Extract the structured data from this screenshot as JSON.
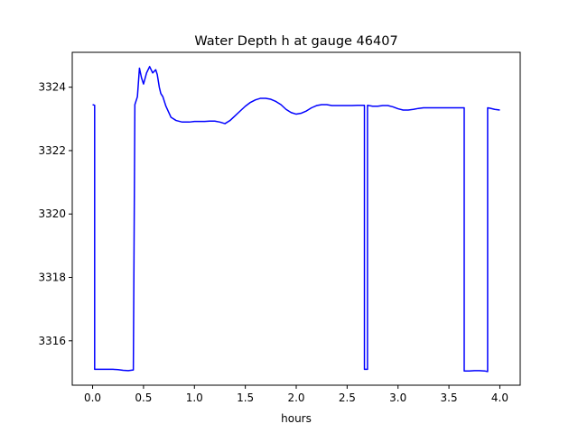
{
  "chart_data": {
    "type": "line",
    "title": "Water Depth h at gauge 46407",
    "xlabel": "hours",
    "ylabel": "",
    "xlim": [
      -0.2,
      4.2
    ],
    "ylim": [
      3314.6,
      3325.1
    ],
    "xticks": [
      0.0,
      0.5,
      1.0,
      1.5,
      2.0,
      2.5,
      3.0,
      3.5,
      4.0
    ],
    "xtick_labels": [
      "0.0",
      "0.5",
      "1.0",
      "1.5",
      "2.0",
      "2.5",
      "3.0",
      "3.5",
      "4.0"
    ],
    "yticks": [
      3316,
      3318,
      3320,
      3322,
      3324
    ],
    "ytick_labels": [
      "3316",
      "3318",
      "3320",
      "3322",
      "3324"
    ],
    "grid": false,
    "series": [
      {
        "color": "#0000ff",
        "x": [
          0.0,
          0.02,
          0.02,
          0.05,
          0.1,
          0.15,
          0.2,
          0.25,
          0.3,
          0.35,
          0.4,
          0.415,
          0.415,
          0.44,
          0.46,
          0.48,
          0.5,
          0.53,
          0.56,
          0.59,
          0.62,
          0.635,
          0.655,
          0.67,
          0.69,
          0.72,
          0.77,
          0.82,
          0.88,
          0.95,
          1.0,
          1.05,
          1.1,
          1.15,
          1.2,
          1.25,
          1.3,
          1.35,
          1.4,
          1.45,
          1.5,
          1.55,
          1.6,
          1.65,
          1.7,
          1.75,
          1.8,
          1.85,
          1.9,
          1.95,
          2.0,
          2.05,
          2.1,
          2.15,
          2.2,
          2.25,
          2.3,
          2.35,
          2.4,
          2.45,
          2.5,
          2.55,
          2.6,
          2.67,
          2.67,
          2.7,
          2.7,
          2.75,
          2.8,
          2.85,
          2.9,
          2.95,
          3.0,
          3.05,
          3.1,
          3.15,
          3.2,
          3.25,
          3.3,
          3.35,
          3.4,
          3.45,
          3.5,
          3.55,
          3.6,
          3.65,
          3.65,
          3.7,
          3.75,
          3.8,
          3.85,
          3.88,
          3.88,
          3.9,
          3.95,
          4.0
        ],
        "y": [
          3323.45,
          3323.43,
          3315.1,
          3315.1,
          3315.1,
          3315.1,
          3315.1,
          3315.09,
          3315.07,
          3315.06,
          3315.08,
          3323.4,
          3323.45,
          3323.7,
          3324.6,
          3324.3,
          3324.1,
          3324.45,
          3324.65,
          3324.45,
          3324.55,
          3324.4,
          3324.0,
          3323.8,
          3323.7,
          3323.4,
          3323.05,
          3322.95,
          3322.9,
          3322.9,
          3322.92,
          3322.92,
          3322.92,
          3322.93,
          3322.93,
          3322.9,
          3322.85,
          3322.95,
          3323.1,
          3323.25,
          3323.4,
          3323.52,
          3323.6,
          3323.65,
          3323.65,
          3323.62,
          3323.55,
          3323.45,
          3323.3,
          3323.2,
          3323.15,
          3323.18,
          3323.25,
          3323.35,
          3323.42,
          3323.45,
          3323.45,
          3323.42,
          3323.42,
          3323.42,
          3323.42,
          3323.42,
          3323.43,
          3323.43,
          3315.1,
          3315.1,
          3323.43,
          3323.4,
          3323.4,
          3323.42,
          3323.42,
          3323.38,
          3323.32,
          3323.28,
          3323.28,
          3323.3,
          3323.33,
          3323.35,
          3323.35,
          3323.35,
          3323.35,
          3323.35,
          3323.35,
          3323.35,
          3323.35,
          3323.35,
          3315.05,
          3315.05,
          3315.06,
          3315.06,
          3315.05,
          3315.03,
          3323.35,
          3323.34,
          3323.3,
          3323.28
        ]
      }
    ]
  }
}
